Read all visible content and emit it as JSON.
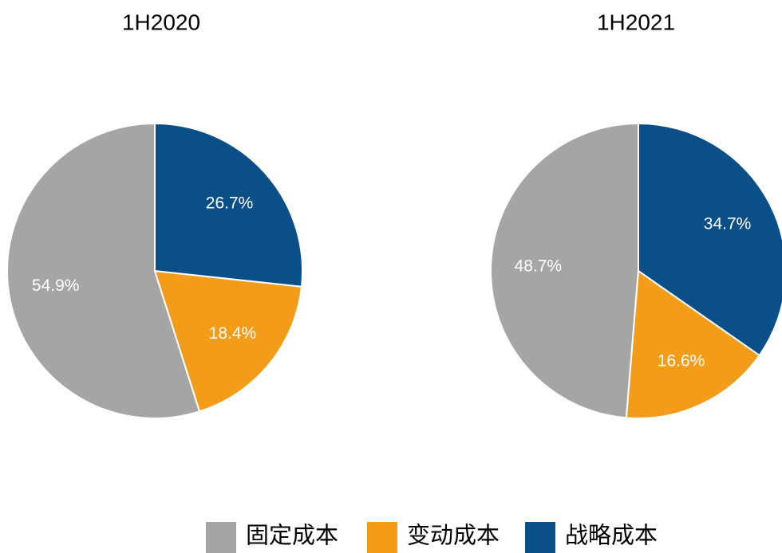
{
  "chart_data": [
    {
      "type": "pie",
      "title": "1H2020",
      "values": [
        54.9,
        18.4,
        26.7
      ],
      "value_labels": [
        "54.9%",
        "18.4%",
        "26.7%"
      ]
    },
    {
      "type": "pie",
      "title": "1H2021",
      "values": [
        48.7,
        16.6,
        34.7
      ],
      "value_labels": [
        "48.7%",
        "16.6%",
        "34.7%"
      ]
    }
  ],
  "legend": {
    "labels": [
      "固定成本",
      "变动成本",
      "战略成本"
    ],
    "colors": [
      "#a5a5a5",
      "#f39c19",
      "#0b4f88"
    ]
  }
}
